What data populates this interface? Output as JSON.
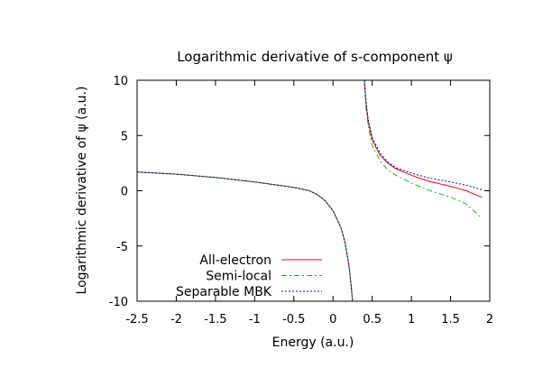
{
  "chart_data": {
    "type": "line",
    "title": "Logarithmic derivative of s-component ψ",
    "xlabel": "Energy (a.u.)",
    "ylabel": "Logarithmic derivative of ψ (a.u.)",
    "xlim": [
      -2.5,
      2
    ],
    "ylim": [
      -10,
      10
    ],
    "x_ticks": [
      -2.5,
      -2,
      -1.5,
      -1,
      -0.5,
      0,
      0.5,
      1,
      1.5,
      2
    ],
    "x_tick_labels": [
      "-2.5",
      "-2",
      "-1.5",
      "-1",
      "-0.5",
      "0",
      "0.5",
      "1",
      "1.5",
      "2"
    ],
    "y_ticks": [
      10,
      5,
      0,
      -5,
      -10
    ],
    "y_tick_labels": [
      "10",
      "5",
      "0",
      "-5",
      "-10"
    ],
    "grid": false,
    "legend_position": "bottom-left",
    "series": [
      {
        "name": "All-electron",
        "color": "#ff0000",
        "dash": "solid",
        "segments": [
          [
            [
              -2.5,
              1.7
            ],
            [
              -2,
              1.5
            ],
            [
              -1.5,
              1.2
            ],
            [
              -1,
              0.8
            ],
            [
              -0.5,
              0.3
            ],
            [
              -0.3,
              0.0
            ],
            [
              -0.2,
              -0.35
            ],
            [
              -0.1,
              -0.9
            ],
            [
              0,
              -1.8
            ],
            [
              0.1,
              -3.3
            ],
            [
              0.15,
              -4.6
            ],
            [
              0.2,
              -6.6
            ],
            [
              0.23,
              -8.5
            ],
            [
              0.25,
              -10
            ]
          ],
          [
            [
              0.4,
              10
            ],
            [
              0.42,
              8
            ],
            [
              0.45,
              6.2
            ],
            [
              0.5,
              4.6
            ],
            [
              0.6,
              3.2
            ],
            [
              0.7,
              2.5
            ],
            [
              0.8,
              2.0
            ],
            [
              1.0,
              1.4
            ],
            [
              1.2,
              0.9
            ],
            [
              1.5,
              0.4
            ],
            [
              1.7,
              0.0
            ],
            [
              1.9,
              -0.6
            ]
          ]
        ]
      },
      {
        "name": "Semi-local",
        "color": "#00cc00",
        "dash": "dashdot",
        "segments": [
          [
            [
              -2.5,
              1.7
            ],
            [
              -2,
              1.5
            ],
            [
              -1.5,
              1.2
            ],
            [
              -1,
              0.8
            ],
            [
              -0.5,
              0.3
            ],
            [
              -0.3,
              0.0
            ],
            [
              -0.2,
              -0.35
            ],
            [
              -0.1,
              -0.9
            ],
            [
              0,
              -1.8
            ],
            [
              0.1,
              -3.3
            ],
            [
              0.15,
              -4.6
            ],
            [
              0.2,
              -6.6
            ],
            [
              0.23,
              -8.5
            ],
            [
              0.25,
              -10
            ]
          ],
          [
            [
              0.4,
              10
            ],
            [
              0.42,
              7.5
            ],
            [
              0.45,
              5.8
            ],
            [
              0.5,
              4.1
            ],
            [
              0.6,
              2.7
            ],
            [
              0.7,
              1.9
            ],
            [
              0.8,
              1.4
            ],
            [
              1.0,
              0.7
            ],
            [
              1.2,
              0.1
            ],
            [
              1.5,
              -0.6
            ],
            [
              1.7,
              -1.2
            ],
            [
              1.9,
              -2.5
            ]
          ]
        ]
      },
      {
        "name": "Separable MBK",
        "color": "#0000cc",
        "dash": "dotted",
        "segments": [
          [
            [
              -2.5,
              1.7
            ],
            [
              -2,
              1.5
            ],
            [
              -1.5,
              1.2
            ],
            [
              -1,
              0.8
            ],
            [
              -0.5,
              0.3
            ],
            [
              -0.3,
              0.0
            ],
            [
              -0.2,
              -0.35
            ],
            [
              -0.1,
              -0.9
            ],
            [
              0,
              -1.8
            ],
            [
              0.1,
              -3.3
            ],
            [
              0.15,
              -4.6
            ],
            [
              0.2,
              -6.6
            ],
            [
              0.23,
              -8.5
            ],
            [
              0.25,
              -10
            ]
          ],
          [
            [
              0.4,
              10
            ],
            [
              0.42,
              8.2
            ],
            [
              0.45,
              6.4
            ],
            [
              0.5,
              4.8
            ],
            [
              0.6,
              3.4
            ],
            [
              0.7,
              2.6
            ],
            [
              0.8,
              2.1
            ],
            [
              1.0,
              1.6
            ],
            [
              1.2,
              1.2
            ],
            [
              1.5,
              0.8
            ],
            [
              1.7,
              0.5
            ],
            [
              1.9,
              0.1
            ]
          ]
        ]
      }
    ]
  }
}
